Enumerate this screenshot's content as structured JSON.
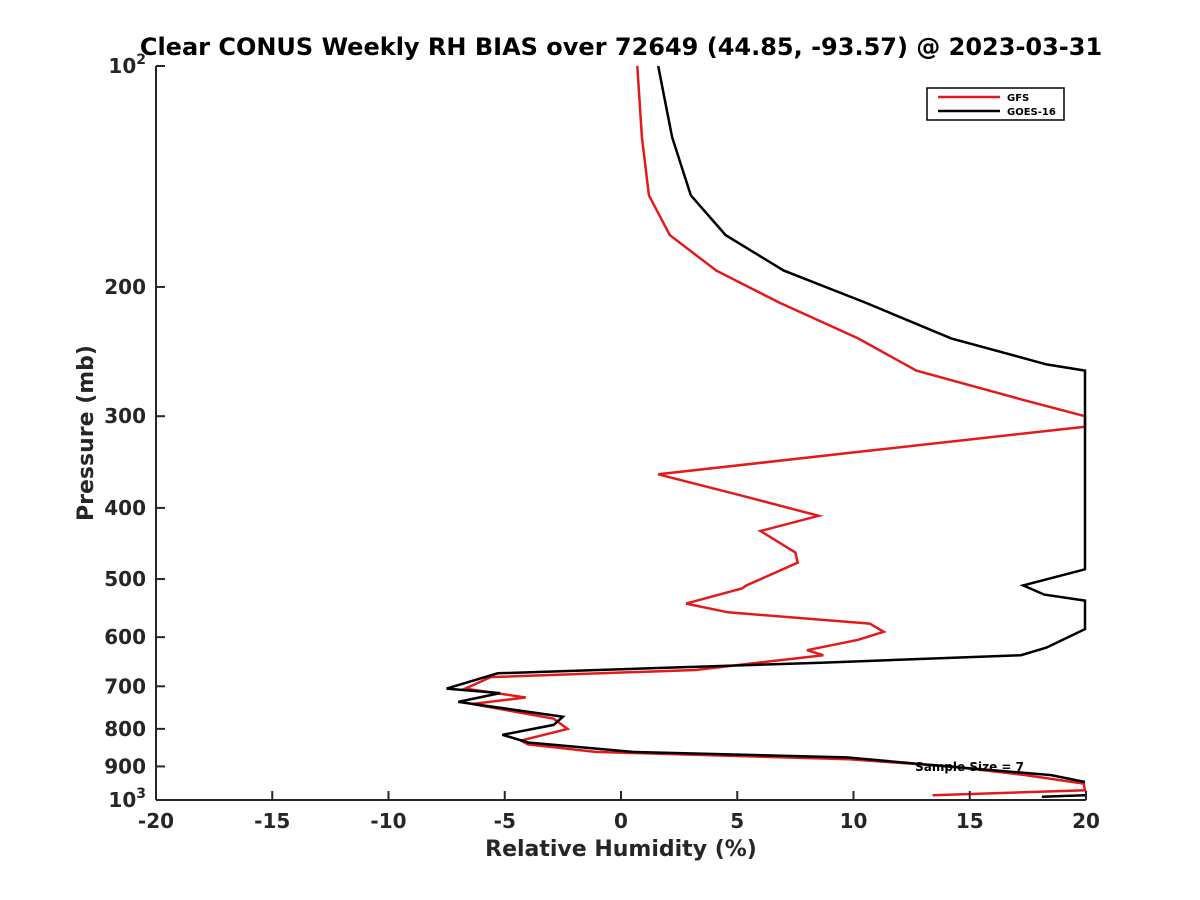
{
  "chart_data": {
    "type": "line",
    "title": "Clear CONUS Weekly RH BIAS over 72649 (44.85, -93.57) @ 2023-03-31",
    "xlabel": "Relative Humidity (%)",
    "ylabel": "Pressure (mb)",
    "xlim": [
      -20,
      20
    ],
    "ylim": [
      100,
      1000
    ],
    "y_scale": "log",
    "y_reversed": true,
    "x_ticks": [
      "-20",
      "-15",
      "-10",
      "-5",
      "0",
      "5",
      "10",
      "15",
      "20"
    ],
    "y_ticks": [
      {
        "value": 100,
        "base": "10",
        "exp": "2"
      },
      {
        "value": 200,
        "base": "200",
        "exp": ""
      },
      {
        "value": 300,
        "base": "300",
        "exp": ""
      },
      {
        "value": 400,
        "base": "400",
        "exp": ""
      },
      {
        "value": 500,
        "base": "500",
        "exp": ""
      },
      {
        "value": 600,
        "base": "600",
        "exp": ""
      },
      {
        "value": 700,
        "base": "700",
        "exp": ""
      },
      {
        "value": 800,
        "base": "800",
        "exp": ""
      },
      {
        "value": 900,
        "base": "900",
        "exp": ""
      },
      {
        "value": 1000,
        "base": "10",
        "exp": "3"
      }
    ],
    "grid": false,
    "legend_position": "top-right",
    "annotation": "Sample Size = 7",
    "series": [
      {
        "name": "GFS",
        "color": "#e31a1c",
        "points": [
          [
            0.7,
            100
          ],
          [
            0.9,
            125
          ],
          [
            1.2,
            150
          ],
          [
            2.1,
            170
          ],
          [
            4.1,
            190
          ],
          [
            6.8,
            210
          ],
          [
            10.2,
            235
          ],
          [
            12.7,
            260
          ],
          [
            17.3,
            285
          ],
          [
            20.3,
            300
          ],
          [
            20.5,
            310
          ],
          [
            10.4,
            335
          ],
          [
            1.6,
            360
          ],
          [
            5.2,
            385
          ],
          [
            8.5,
            410
          ],
          [
            6.0,
            430
          ],
          [
            7.5,
            460
          ],
          [
            7.6,
            475
          ],
          [
            5.4,
            510
          ],
          [
            5.2,
            515
          ],
          [
            2.8,
            540
          ],
          [
            4.6,
            555
          ],
          [
            10.7,
            575
          ],
          [
            11.3,
            590
          ],
          [
            10.2,
            605
          ],
          [
            8.0,
            625
          ],
          [
            8.7,
            635
          ],
          [
            3.2,
            665
          ],
          [
            -5.6,
            680
          ],
          [
            -6.7,
            705
          ],
          [
            -4.1,
            725
          ],
          [
            -6.4,
            740
          ],
          [
            -2.9,
            775
          ],
          [
            -2.3,
            800
          ],
          [
            -4.3,
            830
          ],
          [
            -4.0,
            840
          ],
          [
            -1.1,
            860
          ],
          [
            9.8,
            880
          ],
          [
            14.2,
            900
          ],
          [
            17.4,
            925
          ],
          [
            19.9,
            950
          ],
          [
            20.1,
            970
          ],
          [
            13.4,
            985
          ]
        ]
      },
      {
        "name": "GOES-16",
        "color": "#000000",
        "points": [
          [
            1.6,
            100
          ],
          [
            2.2,
            125
          ],
          [
            3.0,
            150
          ],
          [
            4.5,
            170
          ],
          [
            7.0,
            190
          ],
          [
            10.5,
            210
          ],
          [
            14.2,
            235
          ],
          [
            18.3,
            255
          ],
          [
            20.5,
            260
          ],
          [
            20.5,
            485
          ],
          [
            17.3,
            510
          ],
          [
            18.2,
            525
          ],
          [
            20.5,
            535
          ],
          [
            20.5,
            585
          ],
          [
            18.3,
            620
          ],
          [
            17.2,
            635
          ],
          [
            8.6,
            650
          ],
          [
            -5.3,
            672
          ],
          [
            -7.5,
            705
          ],
          [
            -5.2,
            715
          ],
          [
            -7.0,
            735
          ],
          [
            -2.5,
            770
          ],
          [
            -2.9,
            790
          ],
          [
            -5.1,
            815
          ],
          [
            -4.0,
            835
          ],
          [
            0.5,
            860
          ],
          [
            9.7,
            875
          ],
          [
            14.0,
            900
          ],
          [
            18.5,
            925
          ],
          [
            20.5,
            945
          ]
        ]
      },
      {
        "name": "GOES-16",
        "color": "#000000",
        "points": [
          [
            18.1,
            990
          ],
          [
            20.0,
            985
          ]
        ]
      }
    ]
  }
}
